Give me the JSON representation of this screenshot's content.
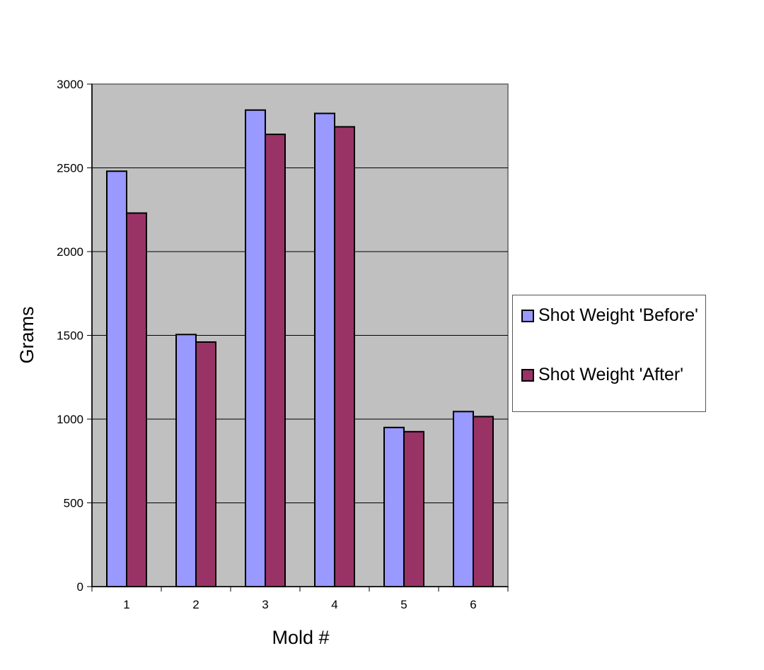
{
  "chart_data": {
    "type": "bar",
    "title": "",
    "xlabel": "Mold #",
    "ylabel": "Grams",
    "ylim": [
      0,
      3000
    ],
    "yticks": [
      0,
      500,
      1000,
      1500,
      2000,
      2500,
      3000
    ],
    "categories": [
      "1",
      "2",
      "3",
      "4",
      "5",
      "6"
    ],
    "grid": true,
    "legend_position": "right",
    "series": [
      {
        "name": "Shot Weight 'Before'",
        "color": "#9999ff",
        "values": [
          2480,
          1505,
          2845,
          2825,
          950,
          1045
        ]
      },
      {
        "name": "Shot Weight 'After'",
        "color": "#993366",
        "values": [
          2230,
          1460,
          2700,
          2745,
          925,
          1015
        ]
      }
    ],
    "plot_background": "#c0c0c0"
  }
}
